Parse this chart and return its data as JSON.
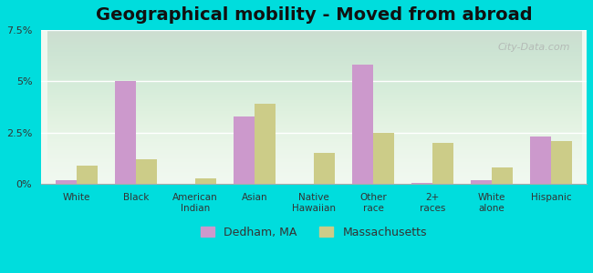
{
  "title": "Geographical mobility - Moved from abroad",
  "categories": [
    "White",
    "Black",
    "American\nIndian",
    "Asian",
    "Native\nHawaiian",
    "Other\nrace",
    "2+\nraces",
    "White\nalone",
    "Hispanic"
  ],
  "dedham_values": [
    0.2,
    5.0,
    0.0,
    3.3,
    0.0,
    5.8,
    0.05,
    0.2,
    2.3
  ],
  "massachusetts_values": [
    0.9,
    1.2,
    0.3,
    3.9,
    1.5,
    2.5,
    2.0,
    0.8,
    2.1
  ],
  "dedham_color": "#cc99cc",
  "massachusetts_color": "#cccc88",
  "background_outer": "#00dddd",
  "background_inner_top": "#f0f8f0",
  "background_inner_bottom": "#e8f4e8",
  "ylim": [
    0,
    7.5
  ],
  "yticks": [
    0,
    2.5,
    5.0,
    7.5
  ],
  "ytick_labels": [
    "0%",
    "2.5%",
    "5%",
    "7.5%"
  ],
  "legend_dedham": "Dedham, MA",
  "legend_massachusetts": "Massachusetts",
  "bar_width": 0.35,
  "title_fontsize": 14,
  "watermark": "City-Data.com"
}
